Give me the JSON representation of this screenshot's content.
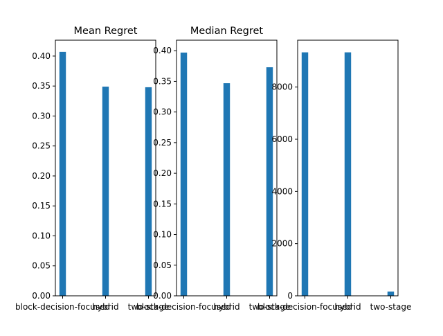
{
  "chart_data": [
    {
      "type": "bar",
      "title": "Mean Regret",
      "categories": [
        "block-decision-focused",
        "hybrid",
        "two-stage"
      ],
      "values": [
        0.407,
        0.349,
        0.348
      ],
      "ylim": [
        0,
        0.4265
      ],
      "yticks": [
        0.0,
        0.05,
        0.1,
        0.15,
        0.2,
        0.25,
        0.3,
        0.35,
        0.4
      ],
      "ytick_labels": [
        "0.00",
        "0.05",
        "0.10",
        "0.15",
        "0.20",
        "0.25",
        "0.30",
        "0.35",
        "0.40"
      ],
      "color": "#1f77b4",
      "grid": false
    },
    {
      "type": "bar",
      "title": "Median Regret",
      "categories": [
        "block-decision-focused",
        "hybrid",
        "two-stage"
      ],
      "values": [
        0.397,
        0.347,
        0.373
      ],
      "ylim": [
        0,
        0.4172
      ],
      "yticks": [
        0.0,
        0.05,
        0.1,
        0.15,
        0.2,
        0.25,
        0.3,
        0.35,
        0.4
      ],
      "ytick_labels": [
        "0.00",
        "0.05",
        "0.10",
        "0.15",
        "0.20",
        "0.25",
        "0.30",
        "0.35",
        "0.40"
      ],
      "color": "#1f77b4",
      "grid": false
    },
    {
      "type": "bar",
      "title": "",
      "categories": [
        "block-decision-focused",
        "hybrid",
        "two-stage"
      ],
      "values": [
        9330,
        9330,
        165
      ],
      "ylim": [
        0,
        9796
      ],
      "yticks": [
        0,
        2000,
        4000,
        6000,
        8000
      ],
      "ytick_labels": [
        "0",
        "2000",
        "4000",
        "6000",
        "8000"
      ],
      "color": "#1f77b4",
      "grid": false
    }
  ]
}
